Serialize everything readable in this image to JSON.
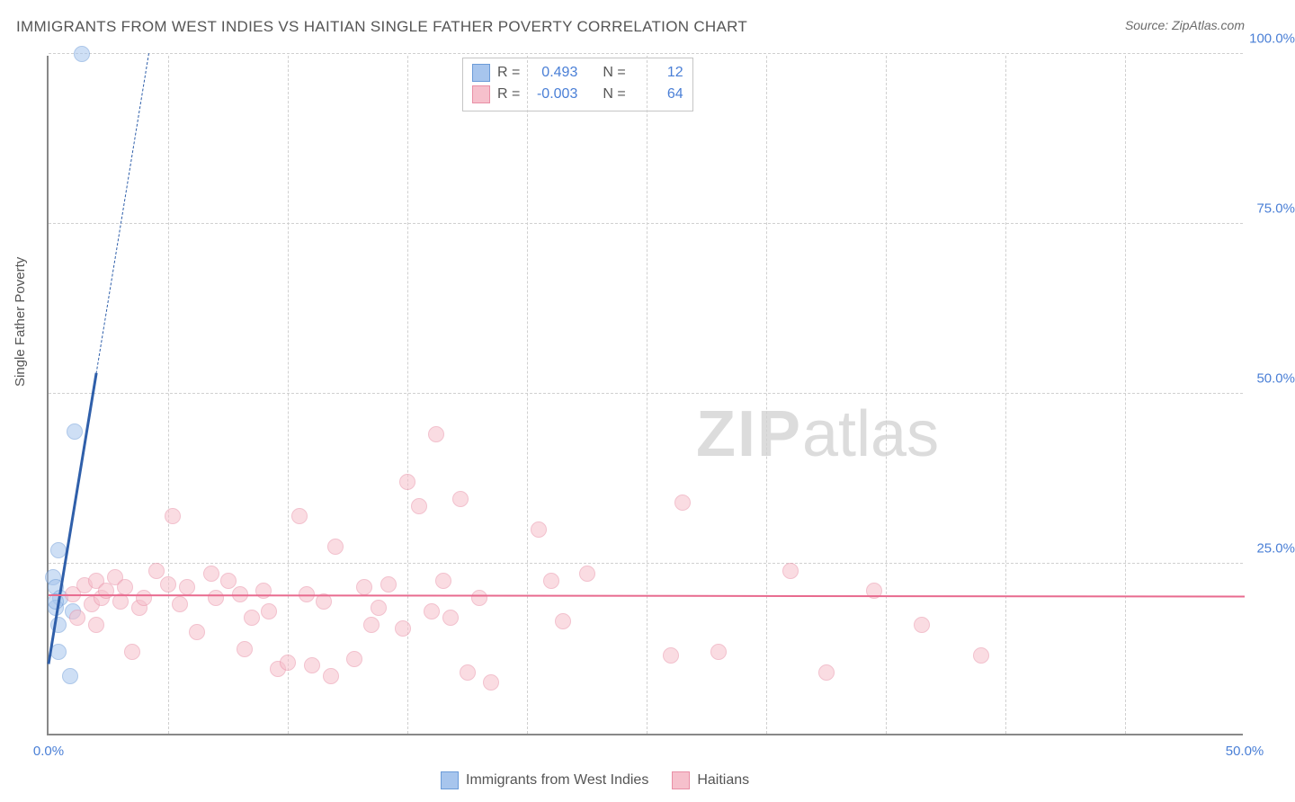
{
  "title": "IMMIGRANTS FROM WEST INDIES VS HAITIAN SINGLE FATHER POVERTY CORRELATION CHART",
  "source": "Source: ZipAtlas.com",
  "y_axis_label": "Single Father Poverty",
  "watermark_zip": "ZIP",
  "watermark_atlas": "atlas",
  "chart": {
    "type": "scatter",
    "background_color": "#ffffff",
    "grid_color": "#d0d0d0",
    "axis_color": "#888888",
    "label_color": "#555555",
    "tick_color": "#4a7fd6",
    "xlim": [
      0,
      50
    ],
    "ylim": [
      0,
      100
    ],
    "x_ticks": [
      0,
      50
    ],
    "y_ticks": [
      25,
      50,
      75,
      100
    ],
    "x_tick_labels": [
      "0.0%",
      "50.0%"
    ],
    "y_tick_labels": [
      "25.0%",
      "50.0%",
      "75.0%",
      "100.0%"
    ],
    "x_gridlines": [
      5,
      10,
      15,
      20,
      25,
      30,
      35,
      40,
      45
    ],
    "y_gridlines": [
      25,
      50,
      75,
      100
    ],
    "title_fontsize": 17,
    "tick_fontsize": 15,
    "label_fontsize": 15,
    "marker_radius": 9,
    "marker_opacity": 0.55,
    "series": [
      {
        "name": "Immigrants from West Indies",
        "color_fill": "#a7c5ed",
        "color_stroke": "#6b9bd8",
        "trend_color": "#2f5faa",
        "trend_solid_width": 3,
        "trend_dash_width": 1,
        "R": "0.493",
        "N": "12",
        "points": [
          [
            1.4,
            100.0
          ],
          [
            1.1,
            44.5
          ],
          [
            0.4,
            27.0
          ],
          [
            0.2,
            23.0
          ],
          [
            0.3,
            21.5
          ],
          [
            0.5,
            20.0
          ],
          [
            0.3,
            18.5
          ],
          [
            1.0,
            18.0
          ],
          [
            0.4,
            16.0
          ],
          [
            0.4,
            12.0
          ],
          [
            0.9,
            8.5
          ],
          [
            0.3,
            19.5
          ]
        ],
        "trend_line": {
          "x1": 0.0,
          "y1": 10.0,
          "x2": 4.2,
          "y2": 100.0,
          "solid_until_x": 2.0
        }
      },
      {
        "name": "Haitians",
        "color_fill": "#f6c0cc",
        "color_stroke": "#e98fa6",
        "trend_color": "#e86b8f",
        "trend_solid_width": 2,
        "R": "-0.003",
        "N": "64",
        "points": [
          [
            1.0,
            20.5
          ],
          [
            1.5,
            21.8
          ],
          [
            1.8,
            19.0
          ],
          [
            2.0,
            22.5
          ],
          [
            2.2,
            20.0
          ],
          [
            2.4,
            21.0
          ],
          [
            2.8,
            23.0
          ],
          [
            3.0,
            19.5
          ],
          [
            3.2,
            21.5
          ],
          [
            3.5,
            12.0
          ],
          [
            3.8,
            18.5
          ],
          [
            4.0,
            20.0
          ],
          [
            4.5,
            24.0
          ],
          [
            5.0,
            22.0
          ],
          [
            5.2,
            32.0
          ],
          [
            5.5,
            19.0
          ],
          [
            5.8,
            21.5
          ],
          [
            6.2,
            15.0
          ],
          [
            6.8,
            23.5
          ],
          [
            7.0,
            20.0
          ],
          [
            7.5,
            22.5
          ],
          [
            8.0,
            20.5
          ],
          [
            8.2,
            12.5
          ],
          [
            8.5,
            17.0
          ],
          [
            9.0,
            21.0
          ],
          [
            9.2,
            18.0
          ],
          [
            9.6,
            9.5
          ],
          [
            10.0,
            10.5
          ],
          [
            10.5,
            32.0
          ],
          [
            10.8,
            20.5
          ],
          [
            11.0,
            10.0
          ],
          [
            11.5,
            19.5
          ],
          [
            11.8,
            8.5
          ],
          [
            12.0,
            27.5
          ],
          [
            12.8,
            11.0
          ],
          [
            13.2,
            21.5
          ],
          [
            13.5,
            16.0
          ],
          [
            13.8,
            18.5
          ],
          [
            14.2,
            22.0
          ],
          [
            14.8,
            15.5
          ],
          [
            15.0,
            37.0
          ],
          [
            15.5,
            33.5
          ],
          [
            16.0,
            18.0
          ],
          [
            16.2,
            44.0
          ],
          [
            16.5,
            22.5
          ],
          [
            16.8,
            17.0
          ],
          [
            17.2,
            34.5
          ],
          [
            17.5,
            9.0
          ],
          [
            18.0,
            20.0
          ],
          [
            18.5,
            7.5
          ],
          [
            20.5,
            30.0
          ],
          [
            21.0,
            22.5
          ],
          [
            21.5,
            16.5
          ],
          [
            22.5,
            23.5
          ],
          [
            26.0,
            11.5
          ],
          [
            26.5,
            34.0
          ],
          [
            28.0,
            12.0
          ],
          [
            31.0,
            24.0
          ],
          [
            32.5,
            9.0
          ],
          [
            34.5,
            21.0
          ],
          [
            36.5,
            16.0
          ],
          [
            39.0,
            11.5
          ],
          [
            1.2,
            17.0
          ],
          [
            2.0,
            16.0
          ]
        ],
        "trend_line": {
          "x1": 0.0,
          "y1": 20.2,
          "x2": 50.0,
          "y2": 20.0
        }
      }
    ]
  },
  "stats_box": {
    "R_label": "R =",
    "N_label": "N ="
  },
  "bottom_legend": {
    "label_a": "Immigrants from West Indies",
    "label_b": "Haitians"
  }
}
